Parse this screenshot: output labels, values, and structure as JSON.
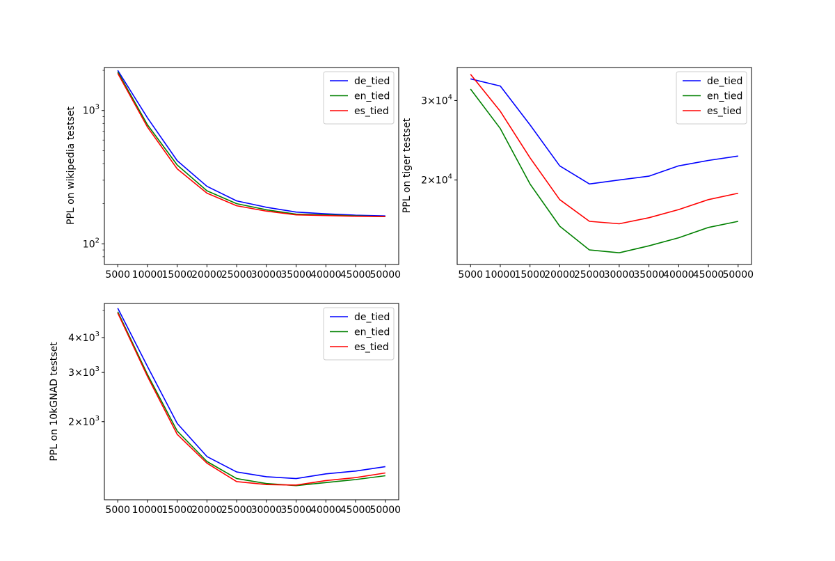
{
  "chart_data": [
    {
      "type": "line",
      "ylabel": "PPL on wikipedia testset",
      "xlabel": "",
      "yscale": "log",
      "ylim": [
        70,
        2100
      ],
      "x": [
        5000,
        10000,
        15000,
        20000,
        25000,
        30000,
        35000,
        40000,
        45000,
        50000
      ],
      "xticks": [
        "5000",
        "10000",
        "15000",
        "20000",
        "25000",
        "30000",
        "35000",
        "40000",
        "45000",
        "50000"
      ],
      "yticks": [
        {
          "base": "10",
          "exp": "2",
          "value": 100
        },
        {
          "base": "10",
          "exp": "3",
          "value": 1000
        }
      ],
      "legend_position": "upper right",
      "series": [
        {
          "name": "de_tied",
          "color": "#0000ff",
          "values": [
            2000,
            880,
            420,
            270,
            210,
            188,
            173,
            168,
            164,
            162
          ]
        },
        {
          "name": "en_tied",
          "color": "#008000",
          "values": [
            1950,
            780,
            390,
            250,
            200,
            180,
            167,
            165,
            162,
            160
          ]
        },
        {
          "name": "es_tied",
          "color": "#ff0000",
          "values": [
            1900,
            750,
            365,
            240,
            193,
            176,
            165,
            163,
            161,
            160
          ]
        }
      ]
    },
    {
      "type": "line",
      "ylabel": "PPL on tiger testset",
      "xlabel": "",
      "yscale": "log",
      "ylim": [
        13000,
        35500
      ],
      "x": [
        5000,
        10000,
        15000,
        20000,
        25000,
        30000,
        35000,
        40000,
        45000,
        50000
      ],
      "xticks": [
        "5000",
        "10000",
        "15000",
        "20000",
        "25000",
        "30000",
        "35000",
        "40000",
        "45000",
        "50000"
      ],
      "yticks": [
        {
          "coef": "2",
          "base": "10",
          "exp": "4",
          "value": 20000
        },
        {
          "coef": "3",
          "base": "10",
          "exp": "4",
          "value": 30000
        }
      ],
      "legend_position": "upper right",
      "series": [
        {
          "name": "de_tied",
          "color": "#0000ff",
          "values": [
            33500,
            32300,
            26500,
            21500,
            19600,
            20000,
            20400,
            21500,
            22100,
            22600
          ]
        },
        {
          "name": "en_tied",
          "color": "#008000",
          "values": [
            31800,
            26000,
            19600,
            15800,
            14000,
            13800,
            14300,
            14900,
            15700,
            16200
          ]
        },
        {
          "name": "es_tied",
          "color": "#ff0000",
          "values": [
            34300,
            28400,
            22400,
            18100,
            16200,
            16000,
            16500,
            17200,
            18100,
            18700
          ]
        }
      ]
    },
    {
      "type": "line",
      "ylabel": "PPL on 10kGNAD testset",
      "xlabel": "",
      "yscale": "log",
      "ylim": [
        1050,
        5300
      ],
      "x": [
        5000,
        10000,
        15000,
        20000,
        25000,
        30000,
        35000,
        40000,
        45000,
        50000
      ],
      "xticks": [
        "5000",
        "10000",
        "15000",
        "20000",
        "25000",
        "30000",
        "35000",
        "40000",
        "45000",
        "50000"
      ],
      "yticks": [
        {
          "coef": "2",
          "base": "10",
          "exp": "3",
          "value": 2000
        },
        {
          "coef": "3",
          "base": "10",
          "exp": "3",
          "value": 3000
        },
        {
          "coef": "4",
          "base": "10",
          "exp": "3",
          "value": 4000
        }
      ],
      "legend_position": "upper right",
      "series": [
        {
          "name": "de_tied",
          "color": "#0000ff",
          "values": [
            5100,
            3150,
            1970,
            1500,
            1320,
            1270,
            1250,
            1300,
            1330,
            1380
          ]
        },
        {
          "name": "en_tied",
          "color": "#008000",
          "values": [
            4950,
            2950,
            1850,
            1440,
            1250,
            1200,
            1180,
            1210,
            1240,
            1280
          ]
        },
        {
          "name": "es_tied",
          "color": "#ff0000",
          "values": [
            4900,
            2900,
            1800,
            1420,
            1220,
            1190,
            1185,
            1230,
            1260,
            1310
          ]
        }
      ]
    }
  ]
}
